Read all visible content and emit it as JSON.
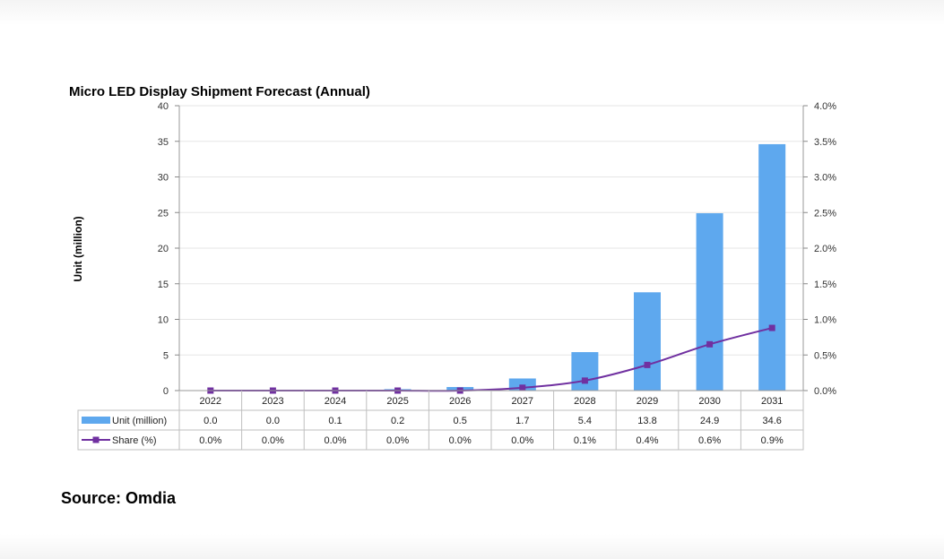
{
  "chart_data": {
    "type": "bar",
    "title": "Micro LED Display Shipment Forecast (Annual)",
    "ylabel": "Unit (million)",
    "xlabel": "",
    "categories": [
      "2022",
      "2023",
      "2024",
      "2025",
      "2026",
      "2027",
      "2028",
      "2029",
      "2030",
      "2031"
    ],
    "series": [
      {
        "name": "Unit (million)",
        "type": "bar",
        "axis": "left",
        "color": "#5ea8ee",
        "values": [
          0.0,
          0.0,
          0.1,
          0.2,
          0.5,
          1.7,
          5.4,
          13.8,
          24.9,
          34.6
        ],
        "labels": [
          "0.0",
          "0.0",
          "0.1",
          "0.2",
          "0.5",
          "1.7",
          "5.4",
          "13.8",
          "24.9",
          "34.6"
        ]
      },
      {
        "name": "Share (%)",
        "type": "line",
        "axis": "right",
        "color": "#7030a0",
        "values": [
          0.0,
          0.0,
          0.0,
          0.0,
          0.0,
          0.04,
          0.14,
          0.36,
          0.65,
          0.88
        ],
        "labels": [
          "0.0%",
          "0.0%",
          "0.0%",
          "0.0%",
          "0.0%",
          "0.0%",
          "0.1%",
          "0.4%",
          "0.6%",
          "0.9%"
        ]
      }
    ],
    "ylim": [
      0,
      40
    ],
    "y2lim": [
      0,
      4
    ],
    "yticks": [
      "0",
      "5",
      "10",
      "15",
      "20",
      "25",
      "30",
      "35",
      "40"
    ],
    "y2ticks": [
      "0.0%",
      "0.5%",
      "1.0%",
      "1.5%",
      "2.0%",
      "2.5%",
      "3.0%",
      "3.5%",
      "4.0%"
    ],
    "grid": true,
    "legend": "data-table"
  },
  "source_text": "Source: Omdia"
}
